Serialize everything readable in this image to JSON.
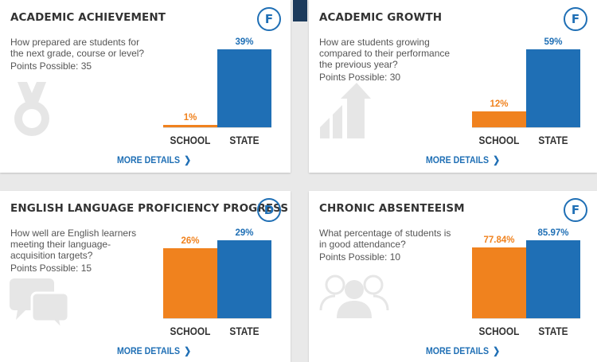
{
  "cards": [
    {
      "title": "ACADEMIC ACHIEVEMENT",
      "grade": "F",
      "question": "How prepared are students for the next grade, course or level?",
      "points": "Points Possible: 35",
      "more": "MORE DETAILS",
      "icon": "medal-icon"
    },
    {
      "title": "ACADEMIC GROWTH",
      "grade": "F",
      "question": "How are students growing compared to their performance the previous year?",
      "points": "Points Possible: 30",
      "more": "MORE DETAILS",
      "icon": "growth-arrow-icon"
    },
    {
      "title": "ENGLISH LANGUAGE PROFICIENCY PROGRESS",
      "grade": "D",
      "question": "How well are English learners meeting their language-acquisition targets?",
      "points": "Points Possible: 15",
      "more": "MORE DETAILS",
      "icon": "speech-bubbles-icon"
    },
    {
      "title": "CHRONIC ABSENTEEISM",
      "grade": "F",
      "question": "What percentage of students is in good attendance?",
      "points": "Points Possible: 10",
      "more": "MORE DETAILS",
      "icon": "people-icon"
    }
  ],
  "colors": {
    "school": "#f0821e",
    "state": "#1f6fb5",
    "grade": "#1f6fb5",
    "icon": "#e6e6e6"
  },
  "chart_data": [
    {
      "type": "bar",
      "categories": [
        "SCHOOL",
        "STATE"
      ],
      "values": [
        1,
        39
      ],
      "labels": [
        "1%",
        "39%"
      ],
      "ylim": [
        0,
        39
      ]
    },
    {
      "type": "bar",
      "categories": [
        "SCHOOL",
        "STATE"
      ],
      "values": [
        12,
        59
      ],
      "labels": [
        "12%",
        "59%"
      ],
      "ylim": [
        0,
        59
      ]
    },
    {
      "type": "bar",
      "categories": [
        "SCHOOL",
        "STATE"
      ],
      "values": [
        26,
        29
      ],
      "labels": [
        "26%",
        "29%"
      ],
      "ylim": [
        0,
        29
      ]
    },
    {
      "type": "bar",
      "categories": [
        "SCHOOL",
        "STATE"
      ],
      "values": [
        77.84,
        85.97
      ],
      "labels": [
        "77.84%",
        "85.97%"
      ],
      "ylim": [
        0,
        85.97
      ]
    }
  ]
}
